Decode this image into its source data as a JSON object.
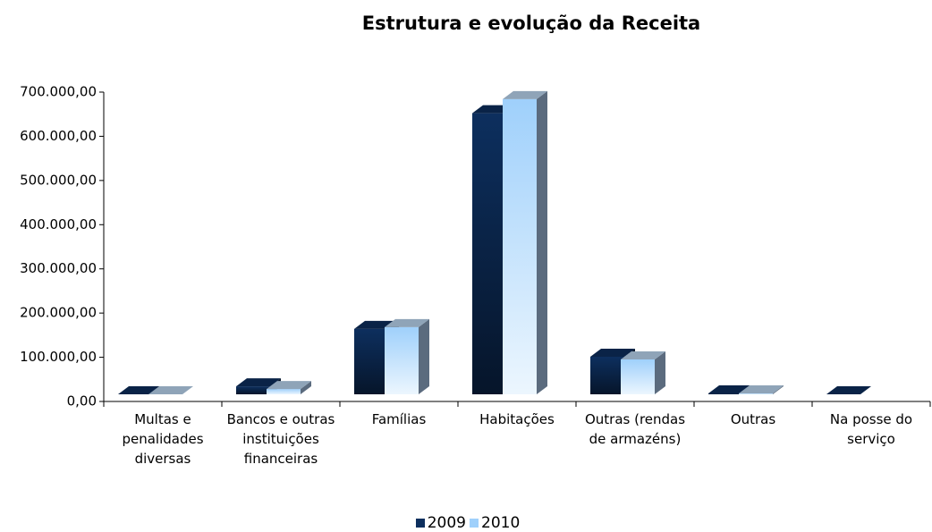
{
  "chart_data": {
    "type": "bar",
    "title": "Estrutura e evolução da Receita",
    "categories": [
      "Multas e penalidades diversas",
      "Bancos e outras instituições financeiras",
      "Famílias",
      "Habitações",
      "Outras (rendas de armazéns)",
      "Outras",
      "Na posse do serviço"
    ],
    "series": [
      {
        "name": "2009",
        "color": "#0d2f5e",
        "values": [
          0,
          18000,
          148000,
          636000,
          85000,
          2000,
          0
        ]
      },
      {
        "name": "2010",
        "color": "#9fd0fb",
        "values": [
          0,
          12000,
          152000,
          668000,
          79000,
          2000,
          null
        ]
      }
    ],
    "ylim": [
      0,
      700000
    ],
    "yticks": [
      {
        "value": 0,
        "label": "0,00"
      },
      {
        "value": 100000,
        "label": "100.000,00"
      },
      {
        "value": 200000,
        "label": "200.000,00"
      },
      {
        "value": 300000,
        "label": "300.000,00"
      },
      {
        "value": 400000,
        "label": "400.000,00"
      },
      {
        "value": 500000,
        "label": "500.000,00"
      },
      {
        "value": 600000,
        "label": "600.000,00"
      },
      {
        "value": 700000,
        "label": "700.000,00"
      }
    ],
    "legend": "bottom"
  }
}
